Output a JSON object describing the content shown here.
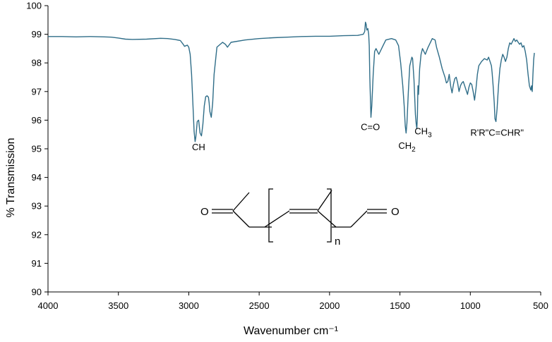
{
  "chart_data": {
    "type": "line",
    "xlabel": "Wavenumber cm⁻¹",
    "ylabel": "% Transmission",
    "xlim": [
      4000,
      500
    ],
    "ylim": [
      90,
      100
    ],
    "x_reversed": true,
    "grid": false,
    "x_ticks": [
      "4000",
      "3500",
      "3000",
      "2500",
      "2000",
      "1500",
      "1000",
      "500"
    ],
    "y_ticks": [
      "90",
      "91",
      "92",
      "93",
      "94",
      "95",
      "96",
      "97",
      "98",
      "99",
      "100"
    ],
    "color": "#2f6d88",
    "series": [
      {
        "x": [
          4000,
          3900,
          3800,
          3700,
          3600,
          3550,
          3500,
          3450,
          3400,
          3300,
          3200,
          3150,
          3100,
          3060,
          3040,
          3030,
          3020,
          3010,
          3000,
          2990,
          2980,
          2970,
          2962,
          2955,
          2950,
          2940,
          2930,
          2920,
          2910,
          2900,
          2890,
          2880,
          2870,
          2860,
          2855,
          2850,
          2840,
          2830,
          2820,
          2800,
          2760,
          2740,
          2725,
          2700,
          2600,
          2500,
          2400,
          2300,
          2200,
          2100,
          2000,
          1900,
          1800,
          1760,
          1750,
          1745,
          1740,
          1735,
          1728,
          1722,
          1718,
          1714,
          1710,
          1706,
          1700,
          1690,
          1680,
          1670,
          1650,
          1620,
          1600,
          1560,
          1530,
          1510,
          1495,
          1480,
          1470,
          1462,
          1456,
          1450,
          1440,
          1430,
          1420,
          1415,
          1410,
          1400,
          1390,
          1385,
          1380,
          1376,
          1372,
          1368,
          1360,
          1350,
          1340,
          1320,
          1300,
          1270,
          1250,
          1240,
          1220,
          1200,
          1180,
          1170,
          1160,
          1150,
          1140,
          1130,
          1120,
          1110,
          1100,
          1090,
          1080,
          1070,
          1060,
          1050,
          1040,
          1030,
          1020,
          1010,
          1000,
          990,
          980,
          970,
          960,
          950,
          940,
          920,
          900,
          880,
          870,
          860,
          850,
          845,
          838,
          830,
          825,
          818,
          810,
          800,
          790,
          780,
          770,
          760,
          750,
          740,
          730,
          720,
          710,
          700,
          690,
          680,
          670,
          660,
          650,
          640,
          630,
          620,
          610,
          600,
          590,
          580,
          570,
          565,
          560,
          555,
          550,
          545
        ],
        "y": [
          98.92,
          98.92,
          98.91,
          98.92,
          98.91,
          98.9,
          98.87,
          98.83,
          98.82,
          98.83,
          98.86,
          98.85,
          98.82,
          98.78,
          98.65,
          98.58,
          98.6,
          98.62,
          98.55,
          98.3,
          97.6,
          96.5,
          95.6,
          95.25,
          95.4,
          95.95,
          96.0,
          95.55,
          95.45,
          95.85,
          96.5,
          96.82,
          96.85,
          96.8,
          96.6,
          96.3,
          96.1,
          96.6,
          97.6,
          98.55,
          98.72,
          98.65,
          98.55,
          98.72,
          98.8,
          98.85,
          98.88,
          98.9,
          98.92,
          98.93,
          98.93,
          98.95,
          98.96,
          99.0,
          99.1,
          99.42,
          99.35,
          99.15,
          99.2,
          99.0,
          98.6,
          97.5,
          96.8,
          96.1,
          96.5,
          97.6,
          98.4,
          98.5,
          98.3,
          98.6,
          98.8,
          98.85,
          98.8,
          98.6,
          98.0,
          97.2,
          96.5,
          95.8,
          95.55,
          95.9,
          97.0,
          97.9,
          98.1,
          98.2,
          98.15,
          97.4,
          96.2,
          95.9,
          95.7,
          96.1,
          97.2,
          96.9,
          97.8,
          98.3,
          98.5,
          98.3,
          98.55,
          98.85,
          98.8,
          98.55,
          98.2,
          97.8,
          97.5,
          97.3,
          97.35,
          97.6,
          97.2,
          96.95,
          97.25,
          97.45,
          97.5,
          97.3,
          97.0,
          97.2,
          97.3,
          97.35,
          97.2,
          97.05,
          96.9,
          97.15,
          97.3,
          97.25,
          97.0,
          96.7,
          97.1,
          97.6,
          97.9,
          98.05,
          98.15,
          98.1,
          98.2,
          98.05,
          97.9,
          97.65,
          97.2,
          96.6,
          96.05,
          95.95,
          96.4,
          97.2,
          97.8,
          98.1,
          98.3,
          98.2,
          98.05,
          98.2,
          98.5,
          98.7,
          98.65,
          98.75,
          98.85,
          98.75,
          98.8,
          98.72,
          98.65,
          98.7,
          98.55,
          98.6,
          98.4,
          98.1,
          97.6,
          97.2,
          97.05,
          97.2,
          97.0,
          97.6,
          98.1,
          98.35
        ]
      }
    ],
    "annotations": [
      {
        "text": "CH",
        "x": 2930,
        "y": 94.95
      },
      {
        "text": "C=O",
        "x": 1710,
        "y": 95.65
      },
      {
        "text": "CH",
        "sub": "2",
        "x": 1450,
        "y": 95.0
      },
      {
        "text": "CH",
        "sub": "3",
        "x": 1335,
        "y": 95.5
      },
      {
        "text": "R'R\"C=CHR\"",
        "x": 810,
        "y": 95.45
      }
    ],
    "structure_labels": {
      "oxygen_left": "O",
      "oxygen_right": "O",
      "repeat_index": "n"
    }
  }
}
